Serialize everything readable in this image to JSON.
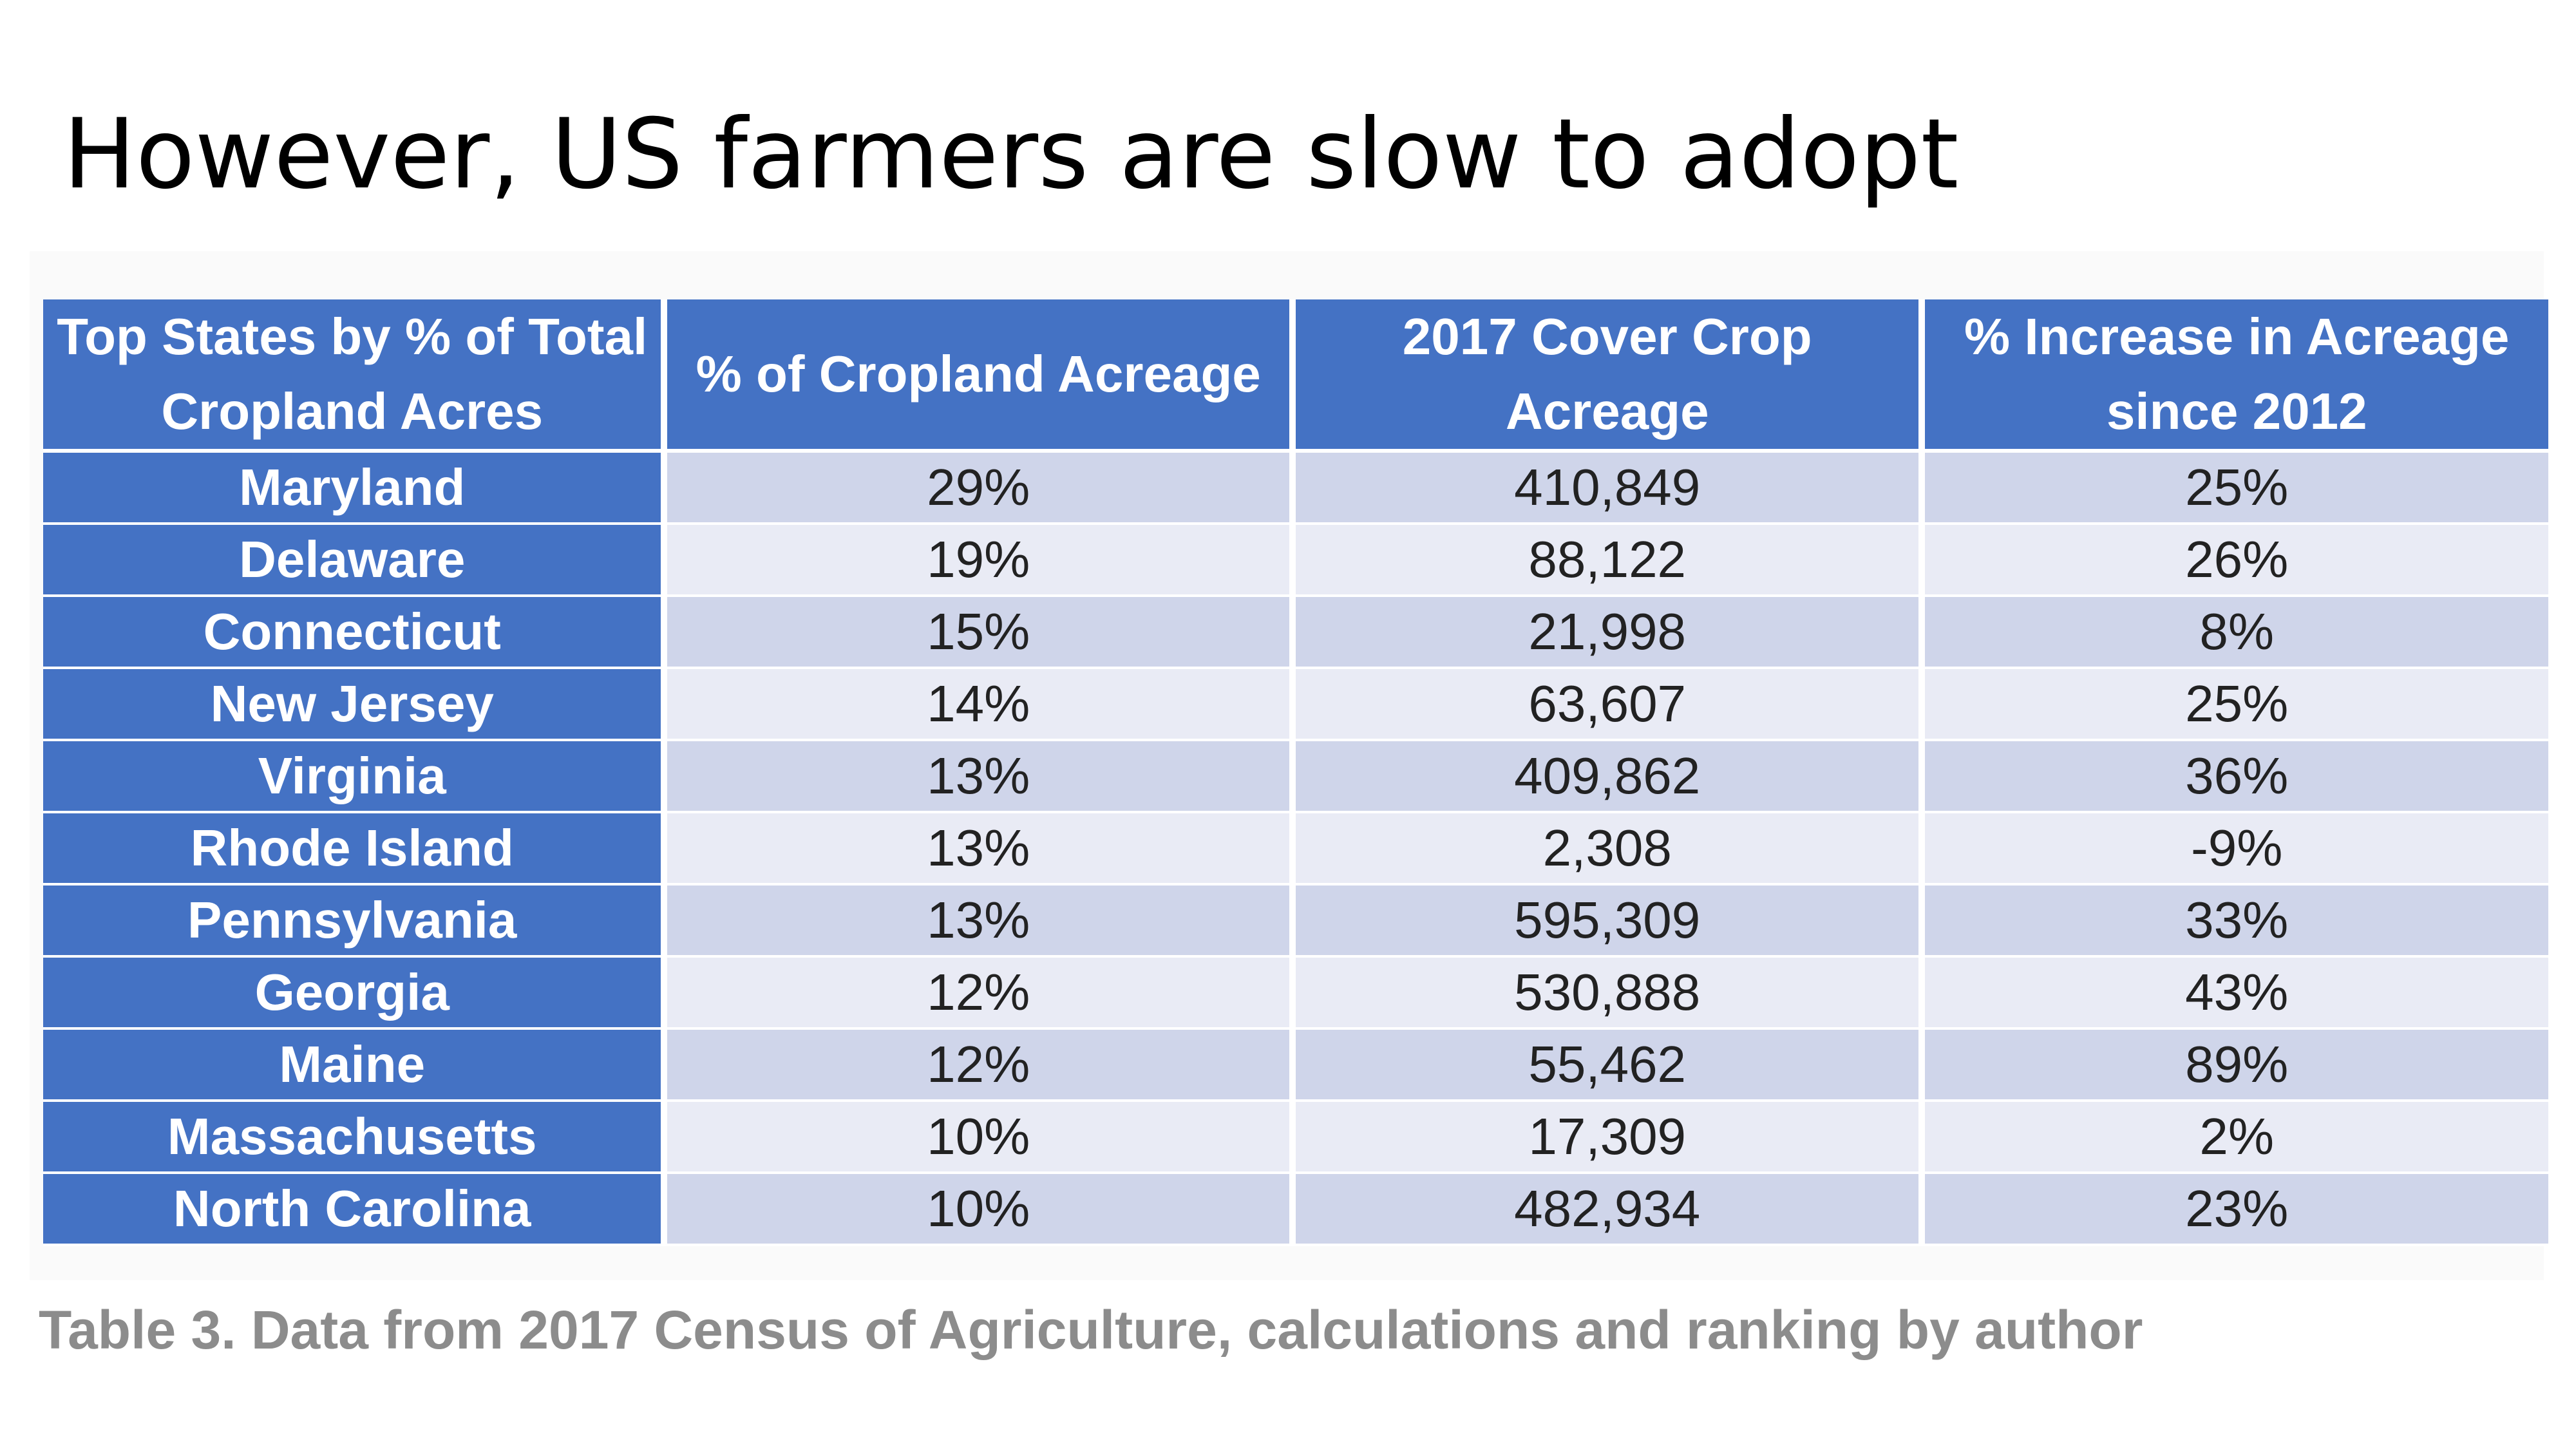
{
  "title": "However, US farmers are slow to adopt",
  "table": {
    "headers": [
      "Top States by % of Total Cropland Acres",
      "% of Cropland Acreage",
      "2017 Cover Crop Acreage",
      "% Increase in Acreage since 2012"
    ],
    "rows": [
      [
        "Maryland",
        "29%",
        "410,849",
        "25%"
      ],
      [
        "Delaware",
        "19%",
        "88,122",
        "26%"
      ],
      [
        "Connecticut",
        "15%",
        "21,998",
        "8%"
      ],
      [
        "New Jersey",
        "14%",
        "63,607",
        "25%"
      ],
      [
        "Virginia",
        "13%",
        "409,862",
        "36%"
      ],
      [
        "Rhode Island",
        "13%",
        "2,308",
        "-9%"
      ],
      [
        "Pennsylvania",
        "13%",
        "595,309",
        "33%"
      ],
      [
        "Georgia",
        "12%",
        "530,888",
        "43%"
      ],
      [
        "Maine",
        "12%",
        "55,462",
        "89%"
      ],
      [
        "Massachusetts",
        "10%",
        "17,309",
        "2%"
      ],
      [
        "North Carolina",
        "10%",
        "482,934",
        "23%"
      ]
    ],
    "colors": {
      "header_bg": "#4472c4",
      "header_text": "#ffffff",
      "row_band_dark": "#cfd5ea",
      "row_band_light": "#e9ebf5"
    }
  },
  "caption": "Table 3. Data from 2017 Census of Agriculture, calculations and ranking by author"
}
